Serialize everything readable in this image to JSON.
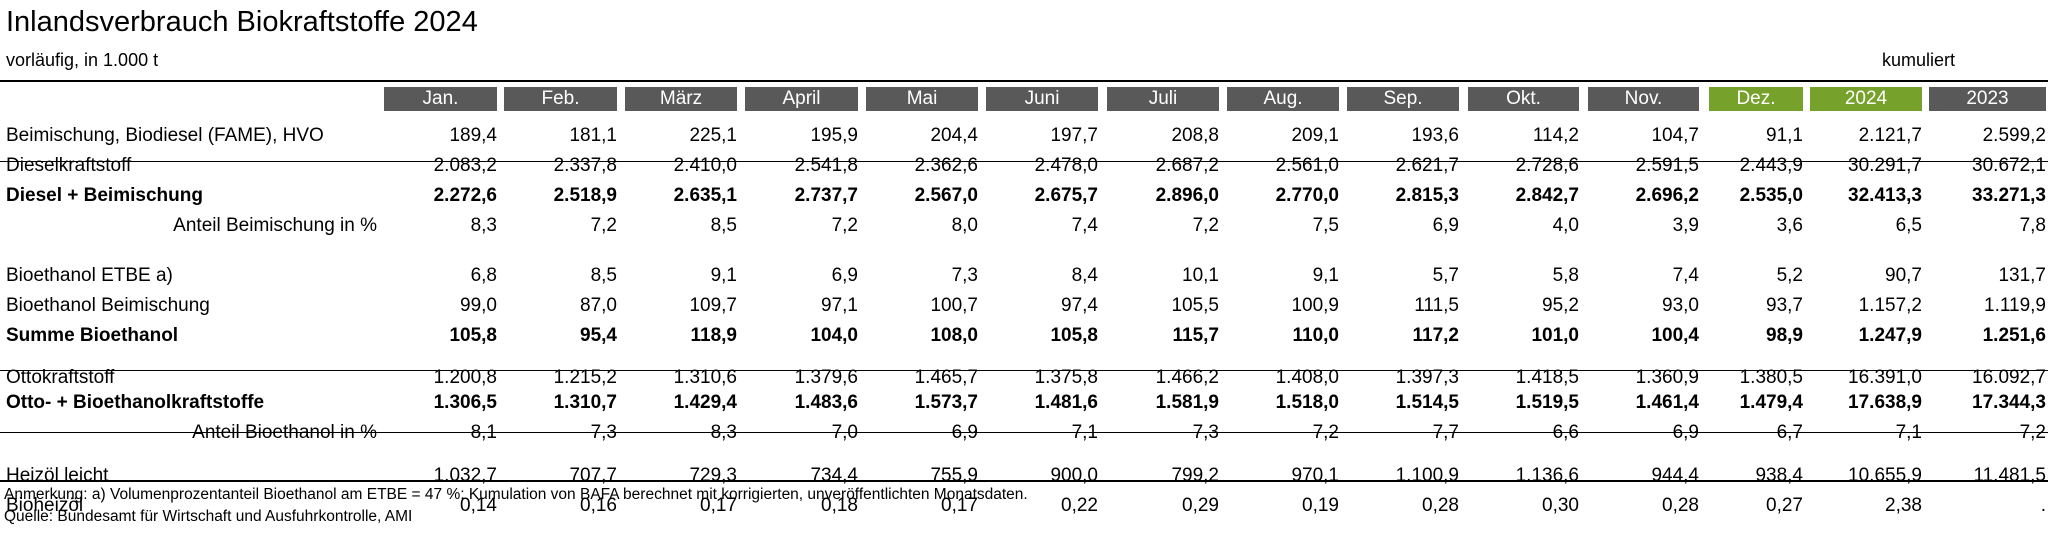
{
  "title": "Inlandsverbrauch Biokraftstoffe 2024",
  "subtitle": "vorläufig, in 1.000 t",
  "cumulative_label": "kumuliert",
  "columns": [
    "Jan.",
    "Feb.",
    "März",
    "April",
    "Mai",
    "Juni",
    "Juli",
    "Aug.",
    "Sep.",
    "Okt.",
    "Nov.",
    "Dez.",
    "2024",
    "2023"
  ],
  "highlight_color": "#76a12b",
  "header_color": "#595959",
  "rows": [
    {
      "label": "Beimischung, Biodiesel (FAME), HVO",
      "values": [
        "189,4",
        "181,1",
        "225,1",
        "195,9",
        "204,4",
        "197,7",
        "208,8",
        "209,1",
        "193,6",
        "114,2",
        "104,7",
        "91,1",
        "2.121,7",
        "2.599,2"
      ]
    },
    {
      "label": "Dieselkraftstoff",
      "values": [
        "2.083,2",
        "2.337,8",
        "2.410,0",
        "2.541,8",
        "2.362,6",
        "2.478,0",
        "2.687,2",
        "2.561,0",
        "2.621,7",
        "2.728,6",
        "2.591,5",
        "2.443,9",
        "30.291,7",
        "30.672,1"
      ]
    },
    {
      "label": "Diesel + Beimischung",
      "values": [
        "2.272,6",
        "2.518,9",
        "2.635,1",
        "2.737,7",
        "2.567,0",
        "2.675,7",
        "2.896,0",
        "2.770,0",
        "2.815,3",
        "2.842,7",
        "2.696,2",
        "2.535,0",
        "32.413,3",
        "33.271,3"
      ]
    },
    {
      "label": "Anteil Beimischung in %",
      "values": [
        "8,3",
        "7,2",
        "8,5",
        "7,2",
        "8,0",
        "7,4",
        "7,2",
        "7,5",
        "6,9",
        "4,0",
        "3,9",
        "3,6",
        "6,5",
        "7,8"
      ]
    },
    {
      "label": "Bioethanol ETBE a)",
      "values": [
        "6,8",
        "8,5",
        "9,1",
        "6,9",
        "7,3",
        "8,4",
        "10,1",
        "9,1",
        "5,7",
        "5,8",
        "7,4",
        "5,2",
        "90,7",
        "131,7"
      ]
    },
    {
      "label": "Bioethanol Beimischung",
      "values": [
        "99,0",
        "87,0",
        "109,7",
        "97,1",
        "100,7",
        "97,4",
        "105,5",
        "100,9",
        "111,5",
        "95,2",
        "93,0",
        "93,7",
        "1.157,2",
        "1.119,9"
      ]
    },
    {
      "label": "Summe Bioethanol",
      "values": [
        "105,8",
        "95,4",
        "118,9",
        "104,0",
        "108,0",
        "105,8",
        "115,7",
        "110,0",
        "117,2",
        "101,0",
        "100,4",
        "98,9",
        "1.247,9",
        "1.251,6"
      ]
    },
    {
      "label": "Ottokraftstoff",
      "values": [
        "1.200,8",
        "1.215,2",
        "1.310,6",
        "1.379,6",
        "1.465,7",
        "1.375,8",
        "1.466,2",
        "1.408,0",
        "1.397,3",
        "1.418,5",
        "1.360,9",
        "1.380,5",
        "16.391,0",
        "16.092,7"
      ]
    },
    {
      "label": "Otto- + Bioethanolkraftstoffe",
      "values": [
        "1.306,5",
        "1.310,7",
        "1.429,4",
        "1.483,6",
        "1.573,7",
        "1.481,6",
        "1.581,9",
        "1.518,0",
        "1.514,5",
        "1.519,5",
        "1.461,4",
        "1.479,4",
        "17.638,9",
        "17.344,3"
      ]
    },
    {
      "label": "Anteil Bioethanol in %",
      "values": [
        "8,1",
        "7,3",
        "8,3",
        "7,0",
        "6,9",
        "7,1",
        "7,3",
        "7,2",
        "7,7",
        "6,6",
        "6,9",
        "6,7",
        "7,1",
        "7,2"
      ]
    },
    {
      "label": "Heizöl leicht",
      "values": [
        "1.032,7",
        "707,7",
        "729,3",
        "734,4",
        "755,9",
        "900,0",
        "799,2",
        "970,1",
        "1.100,9",
        "1.136,6",
        "944,4",
        "938,4",
        "10.655,9",
        "11.481,5"
      ]
    },
    {
      "label": "Bioheizöl",
      "values": [
        "0,14",
        "0,16",
        "0,17",
        "0,18",
        "0,17",
        "0,22",
        "0,29",
        "0,19",
        "0,28",
        "0,30",
        "0,28",
        "0,27",
        "2,38",
        "."
      ]
    }
  ],
  "note": "Anmerkung: a) Volumenprozentanteil Bioethanol am ETBE = 47 %; Kumulation von BAFA berechnet mit korrigierten, unveröffentlichten Monatsdaten.",
  "source": "Quelle: Bundesamt für Wirtschaft und Ausfuhrkontrolle, AMI"
}
